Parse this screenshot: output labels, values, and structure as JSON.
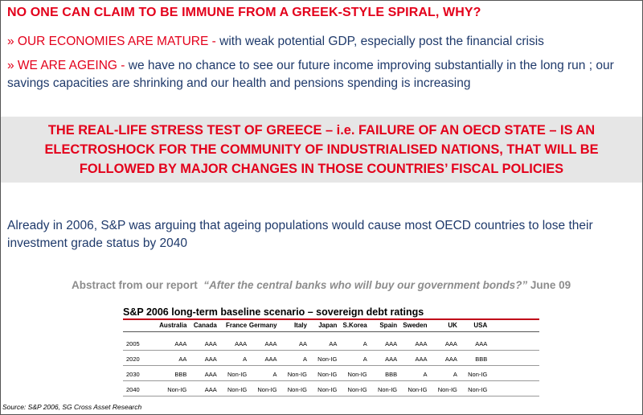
{
  "title": "NO ONE CAN CLAIM TO BE IMMUNE FROM A GREEK-STYLE SPIRAL, WHY?",
  "bullets": [
    {
      "lead": "» OUR ECONOMIES ARE MATURE -",
      "text": " with weak potential GDP, especially post the financial crisis"
    },
    {
      "lead": "» WE ARE AGEING -",
      "text": "  we have no chance to see our future income improving substantially in the long run ; our savings capacities are shrinking and our health and pensions spending is increasing"
    }
  ],
  "banner": "THE REAL-LIFE STRESS TEST OF GREECE – i.e. FAILURE OF AN OECD STATE – IS AN ELECTROSHOCK FOR THE COMMUNITY OF INDUSTRIALISED NATIONS, THAT WILL BE FOLLOWED BY MAJOR CHANGES IN THOSE COUNTRIES’ FISCAL POLICIES",
  "paragraph": "Already in 2006, S&P was arguing that ageing populations would cause most OECD countries to lose their investment grade status by 2040",
  "abstract": {
    "prefix": "Abstract from our report",
    "quote": "“After the central banks who will buy our government bonds?”",
    "suffix": " June 09"
  },
  "table": {
    "title": "S&P 2006 long-term baseline scenario – sovereign debt ratings",
    "columns": [
      "Australia",
      "Canada",
      "France",
      "Germany",
      "Italy",
      "Japan",
      "S.Korea",
      "Spain",
      "Sweden",
      "UK",
      "USA"
    ],
    "rows": [
      {
        "year": "2005",
        "values": [
          "AAA",
          "AAA",
          "AAA",
          "AAA",
          "AA",
          "AA",
          "A",
          "AAA",
          "AAA",
          "AAA",
          "AAA"
        ]
      },
      {
        "year": "2020",
        "values": [
          "AA",
          "AAA",
          "A",
          "AAA",
          "A",
          "Non-IG",
          "A",
          "AAA",
          "AAA",
          "AAA",
          "BBB"
        ]
      },
      {
        "year": "2030",
        "values": [
          "BBB",
          "AAA",
          "Non-IG",
          "A",
          "Non-IG",
          "Non-IG",
          "Non-IG",
          "BBB",
          "A",
          "A",
          "Non-IG"
        ]
      },
      {
        "year": "2040",
        "values": [
          "Non-IG",
          "AAA",
          "Non-IG",
          "Non-IG",
          "Non-IG",
          "Non-IG",
          "Non-IG",
          "Non-IG",
          "Non-IG",
          "Non-IG",
          "Non-IG"
        ]
      }
    ]
  },
  "source": "Source: S&P 2006, SG Cross Asset Research"
}
